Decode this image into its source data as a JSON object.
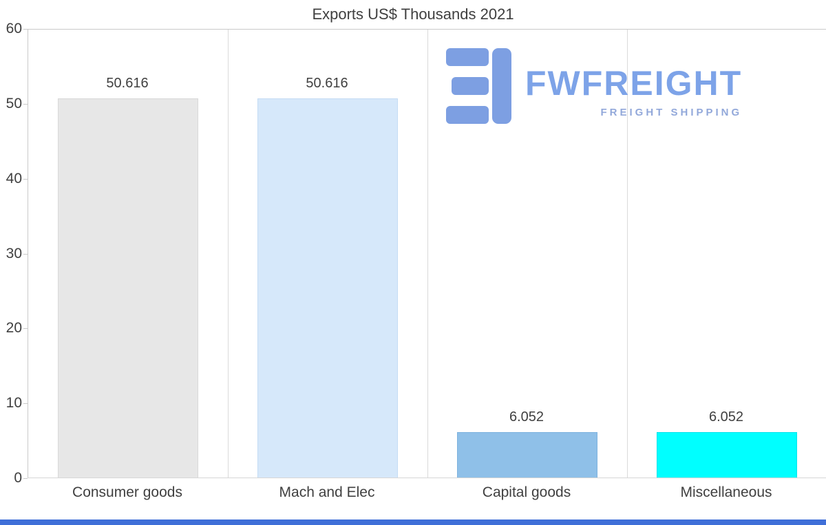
{
  "chart_data": {
    "type": "bar",
    "title": "Exports US$ Thousands 2021",
    "categories": [
      "Consumer goods",
      "Mach and Elec",
      "Capital goods",
      "Miscellaneous"
    ],
    "values": [
      50.616,
      50.616,
      6.052,
      6.052
    ],
    "value_labels": [
      "50.616",
      "50.616",
      "6.052",
      "6.052"
    ],
    "bar_colors": [
      "#e7e7e7",
      "#d6e8fa",
      "#8fc0e8",
      "#00ffff"
    ],
    "bar_border_colors": [
      "#d8d8d8",
      "#c4dcf4",
      "#7db2de",
      "#00e4ec"
    ],
    "xlabel": "",
    "ylabel": "",
    "ylim": [
      0,
      60
    ],
    "y_ticks": [
      0,
      10,
      20,
      30,
      40,
      50,
      60
    ],
    "grid": "vertical category separators on, horizontal off",
    "legend": "none"
  },
  "watermark": {
    "brand": "FWFREIGHT",
    "tagline": "FREIGHT SHIPPING",
    "brand_color": "#7da3e8",
    "tagline_color": "#92a8da",
    "icon_color": "#7d9fe2"
  },
  "footer": {
    "accent_bar_color": "#3f6fd8"
  }
}
